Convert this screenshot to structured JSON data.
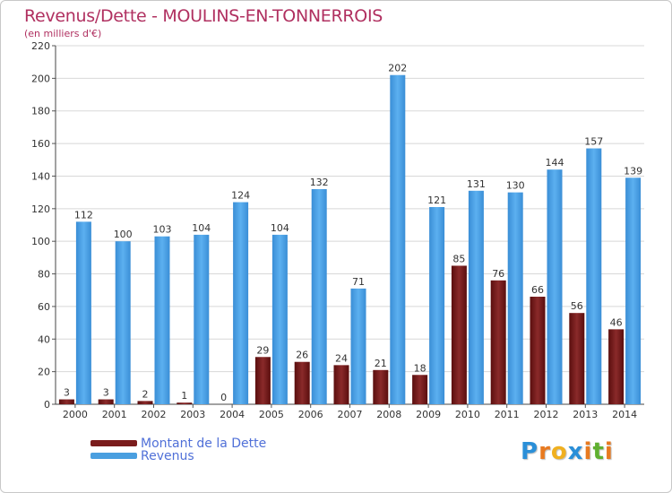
{
  "header": {
    "title": "Revenus/Dette - MOULINS-EN-TONNERROIS",
    "subtitle": "(en milliers d'€)"
  },
  "chart_data": {
    "type": "bar",
    "title": "Revenus/Dette - MOULINS-EN-TONNERROIS",
    "subtitle": "(en milliers d'€)",
    "categories": [
      "2000",
      "2001",
      "2002",
      "2003",
      "2004",
      "2005",
      "2006",
      "2007",
      "2008",
      "2009",
      "2010",
      "2011",
      "2012",
      "2013",
      "2014"
    ],
    "series": [
      {
        "name": "Montant de la Dette",
        "color": "#7a1c1c",
        "values": [
          3,
          3,
          2,
          1,
          0,
          29,
          26,
          24,
          21,
          18,
          85,
          76,
          66,
          56,
          46
        ]
      },
      {
        "name": "Revenus",
        "color": "#4a9fe0",
        "values": [
          112,
          100,
          103,
          104,
          124,
          104,
          132,
          71,
          202,
          121,
          131,
          130,
          144,
          157,
          139
        ]
      }
    ],
    "ylim": [
      0,
      220
    ],
    "yticks": [
      0,
      20,
      40,
      60,
      80,
      100,
      120,
      140,
      160,
      180,
      200,
      220
    ],
    "grid": true,
    "legend": "bottom-left"
  },
  "legend": {
    "items": [
      {
        "label": "Montant de la Dette",
        "color": "#7a1c1c"
      },
      {
        "label": "Revenus",
        "color": "#4a9fe0"
      }
    ]
  },
  "logo": {
    "letters": [
      "P",
      "r",
      "o",
      "x",
      "i",
      "t",
      "i"
    ],
    "colors": [
      "#2a8fd8",
      "#e87a20",
      "#f0b020",
      "#2a8fd8",
      "#e87a20",
      "#60b030",
      "#e87a20"
    ]
  }
}
